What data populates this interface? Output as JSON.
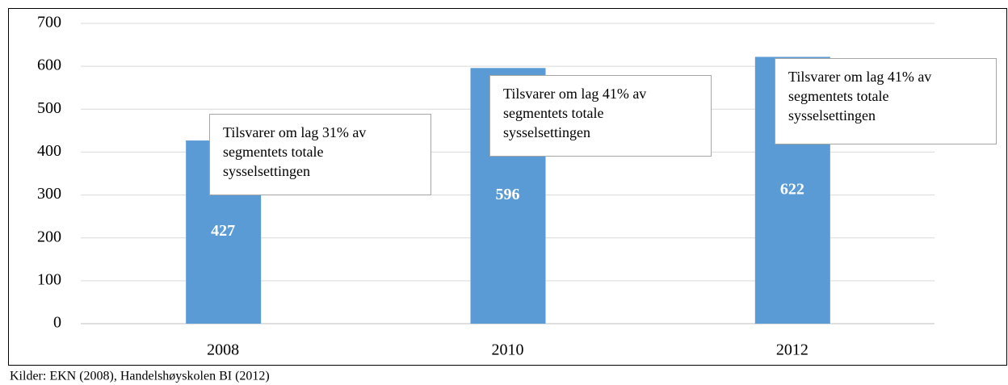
{
  "chart_data": {
    "type": "bar",
    "categories": [
      "2008",
      "2010",
      "2012"
    ],
    "values": [
      427,
      596,
      622
    ],
    "color": "#5b9bd5",
    "ylim": [
      0,
      700
    ],
    "yticks": [
      0,
      100,
      200,
      300,
      400,
      500,
      600,
      700
    ],
    "grid": true,
    "annotations": [
      {
        "lines": [
          "Tilsvarer om lag 31% av",
          "segmentets totale",
          "sysselsettingen"
        ]
      },
      {
        "lines": [
          "Tilsvarer om lag 41% av",
          "segmentets totale",
          "sysselsettingen"
        ]
      },
      {
        "lines": [
          "Tilsvarer om lag 41% av",
          "segmentets totale",
          "sysselsettingen"
        ]
      }
    ],
    "source": "Kilder: EKN (2008), Handelshøyskolen BI (2012)"
  }
}
